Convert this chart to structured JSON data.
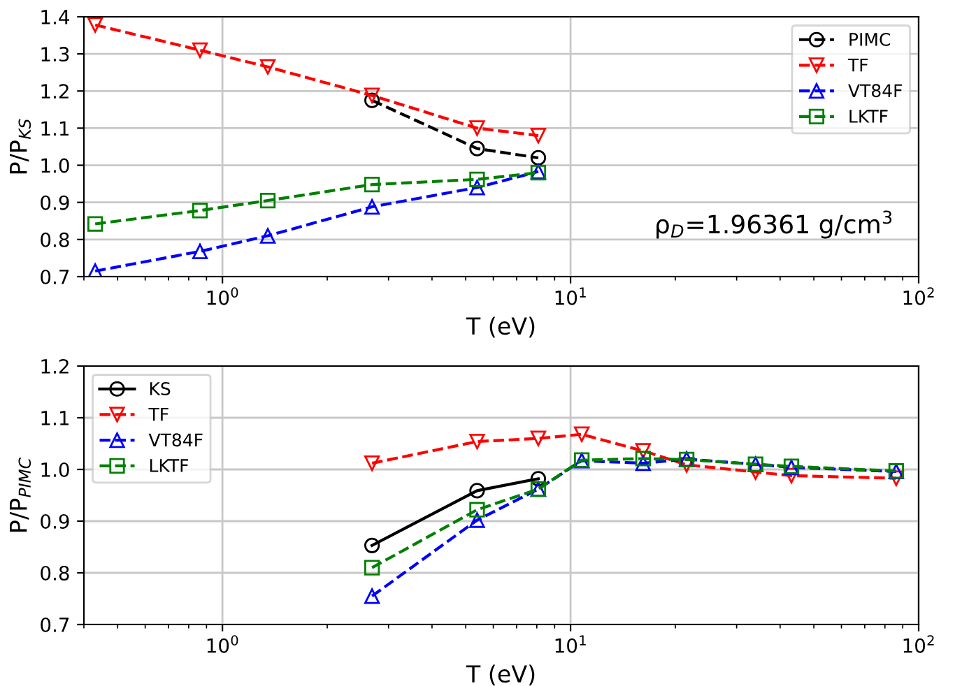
{
  "chart_data": [
    {
      "type": "line",
      "xlabel": "T (eV)",
      "ylabel": "P/P$_{KS}$",
      "log": "x",
      "xlim": [
        0.4,
        100
      ],
      "xticks": [
        {
          "value": 1,
          "label": "10$^{0}$"
        },
        {
          "value": 10,
          "label": "10$^{1}$"
        },
        {
          "value": 100,
          "label": "10$^{2}$"
        }
      ],
      "ylim": [
        0.7,
        1.4
      ],
      "yticks": [
        0.7,
        0.8,
        0.9,
        {
          "value": 1,
          "label": "1.0"
        },
        1.1,
        1.2,
        1.3,
        1.4
      ],
      "grid": true,
      "legend": "top right",
      "annotations": [
        "ρ$_{D}$=1.96361 g/cm$^{3}$"
      ],
      "series": [
        {
          "name": "PIMC",
          "color": "#000000",
          "marker": "circle",
          "line_style": "dashed",
          "x": [
            2.69,
            5.39,
            8.08
          ],
          "values": [
            1.175,
            1.045,
            1.02
          ]
        },
        {
          "name": "TF",
          "color": "#ff0000",
          "marker": "triangle_down",
          "line_style": "dashed",
          "x": [
            0.431,
            0.862,
            1.35,
            2.69,
            5.39,
            8.08
          ],
          "values": [
            1.378,
            1.31,
            1.265,
            1.188,
            1.1,
            1.08
          ]
        },
        {
          "name": "VT84F",
          "color": "#0000ff",
          "marker": "triangle",
          "line_style": "dashed",
          "x": [
            0.431,
            0.862,
            1.35,
            2.69,
            5.39,
            8.08
          ],
          "values": [
            0.715,
            0.768,
            0.81,
            0.888,
            0.94,
            0.983
          ]
        },
        {
          "name": "LKTF",
          "color": "#008000",
          "marker": "square",
          "line_style": "dashed",
          "x": [
            0.431,
            0.862,
            1.35,
            2.69,
            5.39,
            8.08
          ],
          "values": [
            0.842,
            0.878,
            0.905,
            0.948,
            0.962,
            0.98
          ]
        }
      ]
    },
    {
      "type": "line",
      "xlabel": "T (eV)",
      "ylabel": "P/P$_{PIMC}$",
      "log": "x",
      "xlim": [
        0.4,
        100
      ],
      "xticks": [
        {
          "value": 1,
          "label": "10$^{0}$"
        },
        {
          "value": 10,
          "label": "10$^{1}$"
        },
        {
          "value": 100,
          "label": "10$^{2}$"
        }
      ],
      "ylim": [
        0.7,
        1.2
      ],
      "yticks": [
        0.7,
        0.8,
        0.9,
        {
          "value": 1,
          "label": "1.0"
        },
        1.1,
        1.2
      ],
      "grid": true,
      "legend": "top left",
      "series": [
        {
          "name": "KS",
          "color": "#000000",
          "marker": "circle",
          "line_style": "solid",
          "x": [
            2.69,
            5.39,
            8.08
          ],
          "values": [
            0.853,
            0.959,
            0.982
          ]
        },
        {
          "name": "TF",
          "color": "#ff0000",
          "marker": "triangle_down",
          "line_style": "dashed",
          "x": [
            2.69,
            5.39,
            8.08,
            10.77,
            16.16,
            21.55,
            34.0,
            43.1,
            86.2
          ],
          "values": [
            1.012,
            1.054,
            1.06,
            1.068,
            1.036,
            1.009,
            0.995,
            0.988,
            0.983
          ]
        },
        {
          "name": "VT84F",
          "color": "#0000ff",
          "marker": "triangle",
          "line_style": "dashed",
          "x": [
            2.69,
            5.39,
            8.08,
            10.77,
            16.16,
            21.55,
            34.0,
            43.1,
            86.2
          ],
          "values": [
            0.755,
            0.902,
            0.962,
            1.017,
            1.012,
            1.02,
            1.01,
            1.004,
            0.996
          ]
        },
        {
          "name": "LKTF",
          "color": "#008000",
          "marker": "square",
          "line_style": "dashed",
          "x": [
            2.69,
            5.39,
            8.08,
            10.77,
            16.16,
            21.55,
            34.0,
            43.1,
            86.2
          ],
          "values": [
            0.81,
            0.922,
            0.962,
            1.018,
            1.021,
            1.019,
            1.01,
            1.006,
            0.997
          ]
        }
      ]
    }
  ]
}
